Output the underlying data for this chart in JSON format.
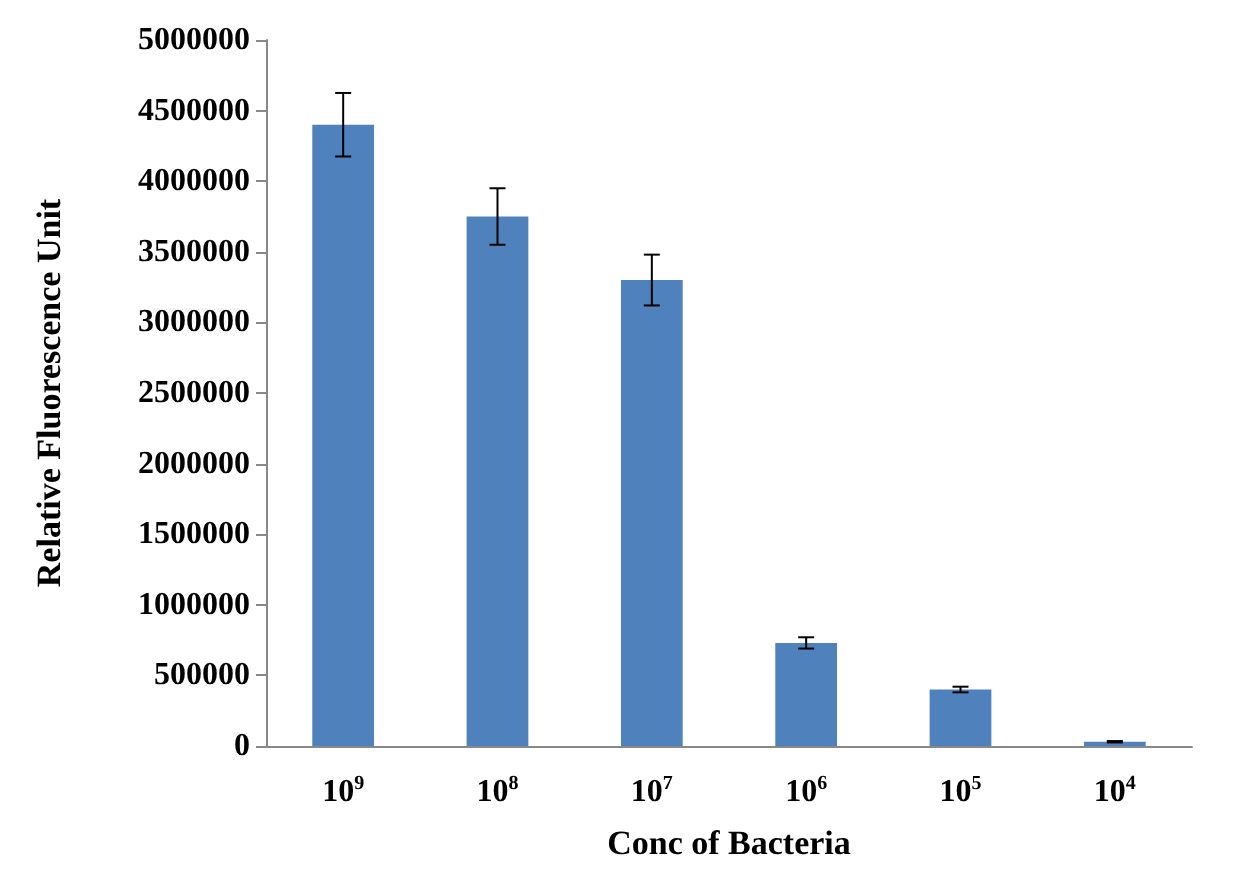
{
  "chart_data": {
    "type": "bar",
    "xlabel": "Conc of Bacteria",
    "ylabel": "Relative Fluorescence Unit",
    "categories": [
      "10$^{9}$",
      "10$^{8}$",
      "10$^{7}$",
      "10$^{6}$",
      "10$^{5}$",
      "10$^{4}$"
    ],
    "values": [
      4400000,
      3750000,
      3300000,
      730000,
      400000,
      30000
    ],
    "errors": [
      225000,
      200000,
      180000,
      40000,
      20000,
      5000
    ],
    "color": "#4f81bd",
    "ylim": [
      0,
      5000000
    ],
    "yticks": [
      0,
      500000,
      1000000,
      1500000,
      2000000,
      2500000,
      3000000,
      3500000,
      4000000,
      4500000,
      5000000
    ],
    "grid": false
  }
}
